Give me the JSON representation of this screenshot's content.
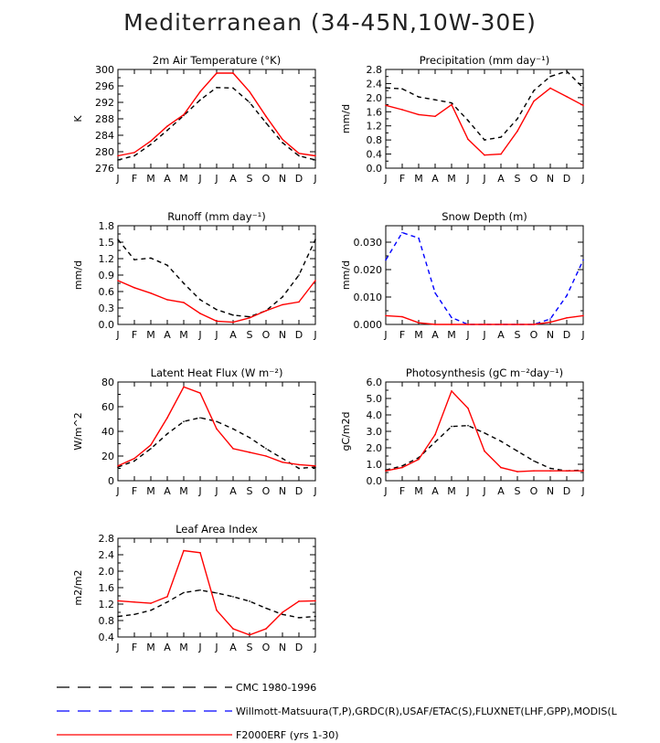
{
  "figure": {
    "title": "Mediterranean (34-45N,10W-30E)"
  },
  "colors": {
    "cmc": "#000000",
    "obs": "#0000ff",
    "model": "#ff0000"
  },
  "legend": [
    {
      "key": "cmc",
      "label": "CMC 1980-1996"
    },
    {
      "key": "obs",
      "label": "Willmott-Matsuura(T,P),GRDC(R),USAF/ETAC(S),FLUXNET(LHF,GPP),MODIS(L"
    },
    {
      "key": "model",
      "label": "F2000ERF (yrs 1-30)"
    }
  ],
  "chart_data": [
    {
      "id": "temp",
      "type": "line",
      "title": "2m Air Temperature (°K)",
      "ylabel": "K",
      "xlabel": "",
      "categories": [
        "J",
        "F",
        "M",
        "A",
        "M",
        "J",
        "J",
        "A",
        "S",
        "O",
        "N",
        "D",
        "J"
      ],
      "ylim": [
        276,
        300
      ],
      "yticks": [
        276,
        280,
        284,
        288,
        292,
        296,
        300
      ],
      "tick_decimals": 0,
      "series": [
        {
          "name": "CMC 1980-1996",
          "key": "cmc",
          "values": [
            278.0,
            279.0,
            281.8,
            285.2,
            288.8,
            292.6,
            295.6,
            295.5,
            292.0,
            287.0,
            282.2,
            279.0,
            278.0
          ]
        },
        {
          "name": "F2000ERF (yrs 1-30)",
          "key": "model",
          "values": [
            279.0,
            279.8,
            282.6,
            286.2,
            289.0,
            294.6,
            299.1,
            299.1,
            294.6,
            288.6,
            283.0,
            279.6,
            279.0
          ]
        }
      ]
    },
    {
      "id": "precip",
      "type": "line",
      "title": "Precipitation (mm day⁻¹)",
      "ylabel": "mm/d",
      "xlabel": "",
      "categories": [
        "J",
        "F",
        "M",
        "A",
        "M",
        "J",
        "J",
        "A",
        "S",
        "O",
        "N",
        "D",
        "J"
      ],
      "ylim": [
        0.0,
        2.8
      ],
      "yticks": [
        0.0,
        0.4,
        0.8,
        1.2,
        1.6,
        2.0,
        2.4,
        2.8
      ],
      "tick_decimals": 1,
      "series": [
        {
          "name": "CMC 1980-1996",
          "key": "cmc",
          "values": [
            2.28,
            2.25,
            2.02,
            1.94,
            1.85,
            1.35,
            0.8,
            0.88,
            1.4,
            2.2,
            2.6,
            2.75,
            2.28
          ]
        },
        {
          "name": "F2000ERF (yrs 1-30)",
          "key": "model",
          "values": [
            1.78,
            1.66,
            1.52,
            1.47,
            1.8,
            0.82,
            0.37,
            0.4,
            1.05,
            1.9,
            2.27,
            2.03,
            1.78
          ]
        }
      ]
    },
    {
      "id": "runoff",
      "type": "line",
      "title": "Runoff (mm day⁻¹)",
      "ylabel": "mm/d",
      "xlabel": "",
      "categories": [
        "J",
        "F",
        "M",
        "A",
        "M",
        "J",
        "J",
        "A",
        "S",
        "O",
        "N",
        "D",
        "J"
      ],
      "ylim": [
        0.0,
        1.8
      ],
      "yticks": [
        0.0,
        0.3,
        0.6,
        0.9,
        1.2,
        1.5,
        1.8
      ],
      "tick_decimals": 1,
      "series": [
        {
          "name": "CMC 1980-1996",
          "key": "cmc",
          "values": [
            1.55,
            1.18,
            1.21,
            1.08,
            0.75,
            0.45,
            0.27,
            0.17,
            0.14,
            0.25,
            0.5,
            0.9,
            1.55
          ]
        },
        {
          "name": "F2000ERF (yrs 1-30)",
          "key": "model",
          "values": [
            0.8,
            0.67,
            0.57,
            0.45,
            0.4,
            0.2,
            0.06,
            0.04,
            0.12,
            0.25,
            0.36,
            0.41,
            0.8
          ]
        }
      ]
    },
    {
      "id": "snow",
      "type": "line",
      "title": "Snow Depth (m)",
      "ylabel": "mm/d",
      "xlabel": "",
      "categories": [
        "J",
        "F",
        "M",
        "A",
        "M",
        "J",
        "J",
        "A",
        "S",
        "O",
        "N",
        "D",
        "J"
      ],
      "ylim": [
        0.0,
        0.036
      ],
      "yticks": [
        0.0,
        0.01,
        0.02,
        0.03
      ],
      "tick_decimals": 3,
      "series": [
        {
          "name": "Willmott-Matsuura(T,P),GRDC(R),USAF/ETAC(S),FLUXNET(LHF,GPP),MODIS(L",
          "key": "obs",
          "values": [
            0.0235,
            0.0335,
            0.0315,
            0.0115,
            0.0025,
            0.0,
            0.0,
            0.0,
            0.0,
            0.0,
            0.002,
            0.0105,
            0.0235
          ]
        },
        {
          "name": "F2000ERF (yrs 1-30)",
          "key": "model",
          "values": [
            0.0032,
            0.0028,
            0.0006,
            0.0,
            0.0,
            0.0,
            0.0,
            0.0,
            0.0,
            0.0,
            0.0008,
            0.0024,
            0.0032
          ]
        }
      ]
    },
    {
      "id": "lhf",
      "type": "line",
      "title": "Latent Heat Flux (W m⁻²)",
      "ylabel": "W/m^2",
      "xlabel": "",
      "categories": [
        "J",
        "F",
        "M",
        "A",
        "M",
        "J",
        "J",
        "A",
        "S",
        "O",
        "N",
        "D",
        "J"
      ],
      "ylim": [
        0,
        80
      ],
      "yticks": [
        0,
        20,
        40,
        60,
        80
      ],
      "tick_decimals": 0,
      "series": [
        {
          "name": "CMC 1980-1996",
          "key": "cmc",
          "values": [
            11,
            16,
            26,
            38,
            48,
            51,
            48,
            42,
            35,
            26,
            18,
            10,
            11
          ]
        },
        {
          "name": "F2000ERF (yrs 1-30)",
          "key": "model",
          "values": [
            12,
            18,
            29,
            51,
            76,
            71,
            42,
            26,
            23,
            20,
            15,
            13,
            12
          ]
        }
      ]
    },
    {
      "id": "photo",
      "type": "line",
      "title": "Photosynthesis (gC m⁻²day⁻¹)",
      "ylabel": "gC/m2d",
      "xlabel": "",
      "categories": [
        "J",
        "F",
        "M",
        "A",
        "M",
        "J",
        "J",
        "A",
        "S",
        "O",
        "N",
        "D",
        "J"
      ],
      "ylim": [
        0.0,
        6.0
      ],
      "yticks": [
        0.0,
        1.0,
        2.0,
        3.0,
        4.0,
        5.0,
        6.0
      ],
      "tick_decimals": 1,
      "series": [
        {
          "name": "CMC 1980-1996",
          "key": "cmc",
          "values": [
            0.65,
            0.9,
            1.4,
            2.35,
            3.3,
            3.35,
            2.9,
            2.4,
            1.8,
            1.2,
            0.75,
            0.6,
            0.65
          ]
        },
        {
          "name": "F2000ERF (yrs 1-30)",
          "key": "model",
          "values": [
            0.6,
            0.8,
            1.3,
            2.8,
            5.45,
            4.4,
            1.8,
            0.8,
            0.55,
            0.6,
            0.6,
            0.6,
            0.6
          ]
        }
      ]
    },
    {
      "id": "lai",
      "type": "line",
      "title": "Leaf Area Index",
      "ylabel": "m2/m2",
      "xlabel": "",
      "categories": [
        "J",
        "F",
        "M",
        "A",
        "M",
        "J",
        "J",
        "A",
        "S",
        "O",
        "N",
        "D",
        "J"
      ],
      "ylim": [
        0.4,
        2.8
      ],
      "yticks": [
        0.4,
        0.8,
        1.2,
        1.6,
        2.0,
        2.4,
        2.8
      ],
      "tick_decimals": 1,
      "series": [
        {
          "name": "CMC 1980-1996",
          "key": "cmc",
          "values": [
            0.9,
            0.95,
            1.05,
            1.25,
            1.48,
            1.54,
            1.47,
            1.38,
            1.27,
            1.1,
            0.95,
            0.87,
            0.9
          ]
        },
        {
          "name": "F2000ERF (yrs 1-30)",
          "key": "model",
          "values": [
            1.28,
            1.25,
            1.22,
            1.38,
            2.5,
            2.45,
            1.05,
            0.6,
            0.45,
            0.6,
            1.0,
            1.27,
            1.28
          ]
        }
      ]
    }
  ]
}
